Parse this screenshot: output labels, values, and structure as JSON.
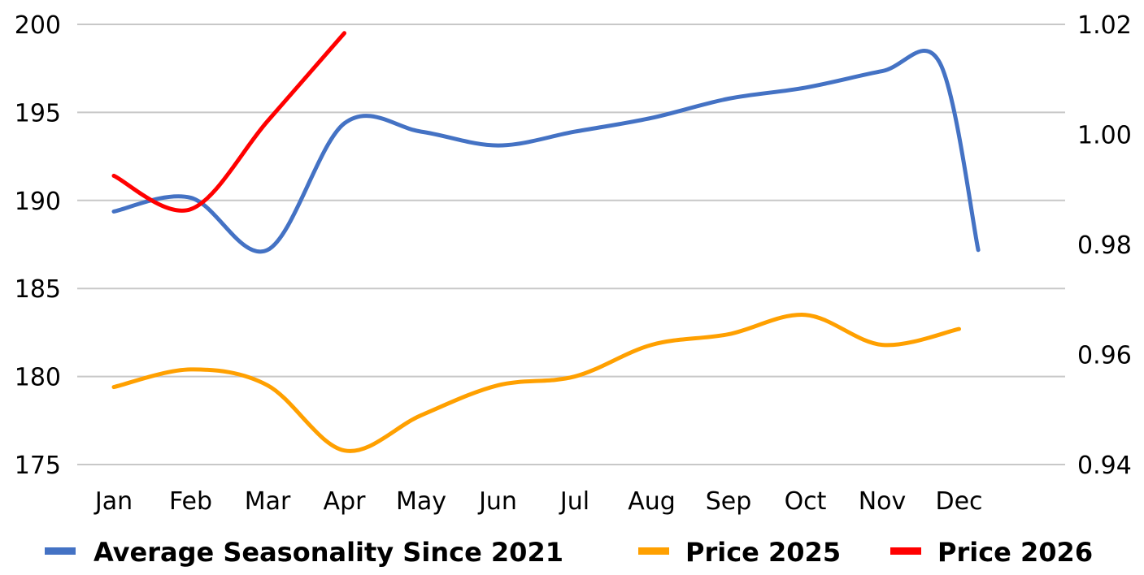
{
  "chart_data": {
    "type": "line",
    "categories": [
      "Jan",
      "Feb",
      "Mar",
      "Apr",
      "May",
      "Jun",
      "Jul",
      "Aug",
      "Sep",
      "Oct",
      "Nov",
      "Dec"
    ],
    "y_left": {
      "min": 175,
      "max": 200,
      "ticks": [
        200,
        195,
        190,
        185,
        180,
        175
      ]
    },
    "y_right": {
      "min": 0.94,
      "max": 1.02,
      "ticks": [
        "1.02",
        "1.00",
        "0.98",
        "0.96",
        "0.94"
      ]
    },
    "grid": true,
    "legend_position": "bottom",
    "series": [
      {
        "name": "Average Seasonality Since 2021",
        "axis": "right",
        "color": "#4472C4",
        "points": [
          [
            0,
            0.986
          ],
          [
            1,
            0.9885
          ],
          [
            2,
            0.979
          ],
          [
            3,
            1.002
          ],
          [
            4,
            1.0005
          ],
          [
            5,
            0.998
          ],
          [
            6,
            1.0005
          ],
          [
            7,
            1.003
          ],
          [
            8,
            1.0065
          ],
          [
            9,
            1.0085
          ],
          [
            10,
            1.0115
          ],
          [
            10.75,
            1.013
          ],
          [
            11.25,
            0.979
          ]
        ]
      },
      {
        "name": "Price 2025",
        "axis": "left",
        "color": "#FFA000",
        "points": [
          [
            0,
            179.4
          ],
          [
            1,
            180.4
          ],
          [
            2,
            179.5
          ],
          [
            3,
            175.8
          ],
          [
            4,
            177.8
          ],
          [
            5,
            179.5
          ],
          [
            6,
            180.0
          ],
          [
            7,
            181.8
          ],
          [
            8,
            182.4
          ],
          [
            9,
            183.5
          ],
          [
            10,
            181.8
          ],
          [
            11,
            182.7
          ]
        ]
      },
      {
        "name": "Price 2026",
        "axis": "left",
        "color": "#FF0000",
        "points": [
          [
            0,
            191.4
          ],
          [
            1,
            189.5
          ],
          [
            2,
            194.5
          ],
          [
            3,
            199.5
          ]
        ]
      }
    ]
  }
}
